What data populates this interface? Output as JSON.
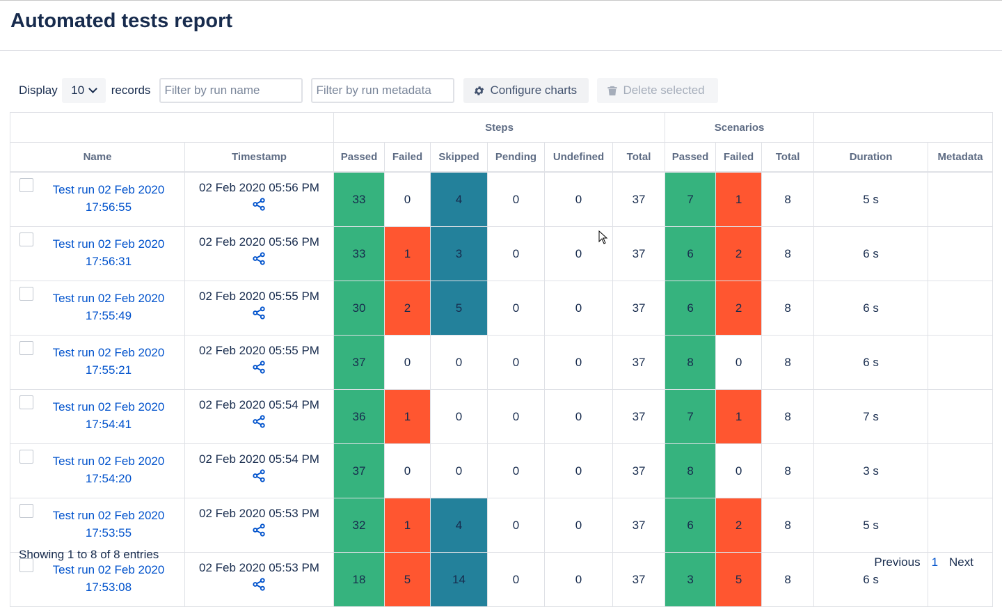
{
  "title": "Automated tests report",
  "toolbar": {
    "display_label": "Display",
    "records_per_page": "10",
    "records_label": "records",
    "filter_name_placeholder": "Filter by run name",
    "filter_meta_placeholder": "Filter by run metadata",
    "configure_label": "Configure charts",
    "delete_label": "Delete selected",
    "configure_icon": "gear-icon",
    "delete_icon": "trash-icon"
  },
  "table": {
    "groups": {
      "steps": "Steps",
      "scenarios": "Scenarios"
    },
    "columns": {
      "name": "Name",
      "timestamp": "Timestamp",
      "steps_passed": "Passed",
      "steps_failed": "Failed",
      "steps_skipped": "Skipped",
      "steps_pending": "Pending",
      "steps_undefined": "Undefined",
      "steps_total": "Total",
      "sc_passed": "Passed",
      "sc_failed": "Failed",
      "sc_total": "Total",
      "duration": "Duration",
      "metadata": "Metadata"
    },
    "rows": [
      {
        "name1": "Test run 02 Feb 2020",
        "name2": "17:56:55",
        "ts": "02 Feb 2020 05:56 PM",
        "passed": "33",
        "failed": "0",
        "skipped": "4",
        "pending": "0",
        "undefined": "0",
        "total": "37",
        "sc_passed": "7",
        "sc_failed": "1",
        "sc_total": "8",
        "duration": "5 s",
        "metadata": ""
      },
      {
        "name1": "Test run 02 Feb 2020",
        "name2": "17:56:31",
        "ts": "02 Feb 2020 05:56 PM",
        "passed": "33",
        "failed": "1",
        "skipped": "3",
        "pending": "0",
        "undefined": "0",
        "total": "37",
        "sc_passed": "6",
        "sc_failed": "2",
        "sc_total": "8",
        "duration": "6 s",
        "metadata": ""
      },
      {
        "name1": "Test run 02 Feb 2020",
        "name2": "17:55:49",
        "ts": "02 Feb 2020 05:55 PM",
        "passed": "30",
        "failed": "2",
        "skipped": "5",
        "pending": "0",
        "undefined": "0",
        "total": "37",
        "sc_passed": "6",
        "sc_failed": "2",
        "sc_total": "8",
        "duration": "6 s",
        "metadata": ""
      },
      {
        "name1": "Test run 02 Feb 2020",
        "name2": "17:55:21",
        "ts": "02 Feb 2020 05:55 PM",
        "passed": "37",
        "failed": "0",
        "skipped": "0",
        "pending": "0",
        "undefined": "0",
        "total": "37",
        "sc_passed": "8",
        "sc_failed": "0",
        "sc_total": "8",
        "duration": "6 s",
        "metadata": ""
      },
      {
        "name1": "Test run 02 Feb 2020",
        "name2": "17:54:41",
        "ts": "02 Feb 2020 05:54 PM",
        "passed": "36",
        "failed": "1",
        "skipped": "0",
        "pending": "0",
        "undefined": "0",
        "total": "37",
        "sc_passed": "7",
        "sc_failed": "1",
        "sc_total": "8",
        "duration": "7 s",
        "metadata": ""
      },
      {
        "name1": "Test run 02 Feb 2020",
        "name2": "17:54:20",
        "ts": "02 Feb 2020 05:54 PM",
        "passed": "37",
        "failed": "0",
        "skipped": "0",
        "pending": "0",
        "undefined": "0",
        "total": "37",
        "sc_passed": "8",
        "sc_failed": "0",
        "sc_total": "8",
        "duration": "3 s",
        "metadata": ""
      },
      {
        "name1": "Test run 02 Feb 2020",
        "name2": "17:53:55",
        "ts": "02 Feb 2020 05:53 PM",
        "passed": "32",
        "failed": "1",
        "skipped": "4",
        "pending": "0",
        "undefined": "0",
        "total": "37",
        "sc_passed": "6",
        "sc_failed": "2",
        "sc_total": "8",
        "duration": "5 s",
        "metadata": ""
      },
      {
        "name1": "Test run 02 Feb 2020",
        "name2": "17:53:08",
        "ts": "02 Feb 2020 05:53 PM",
        "passed": "18",
        "failed": "5",
        "skipped": "14",
        "pending": "0",
        "undefined": "0",
        "total": "37",
        "sc_passed": "3",
        "sc_failed": "5",
        "sc_total": "8",
        "duration": "6 s",
        "metadata": ""
      }
    ]
  },
  "footer": {
    "showing": "Showing 1 to 8 of 8 entries",
    "previous": "Previous",
    "current_page": "1",
    "next": "Next"
  },
  "colors": {
    "passed": "#36b37e",
    "failed": "#ff5630",
    "skipped": "#23819b",
    "link": "#0052cc"
  }
}
